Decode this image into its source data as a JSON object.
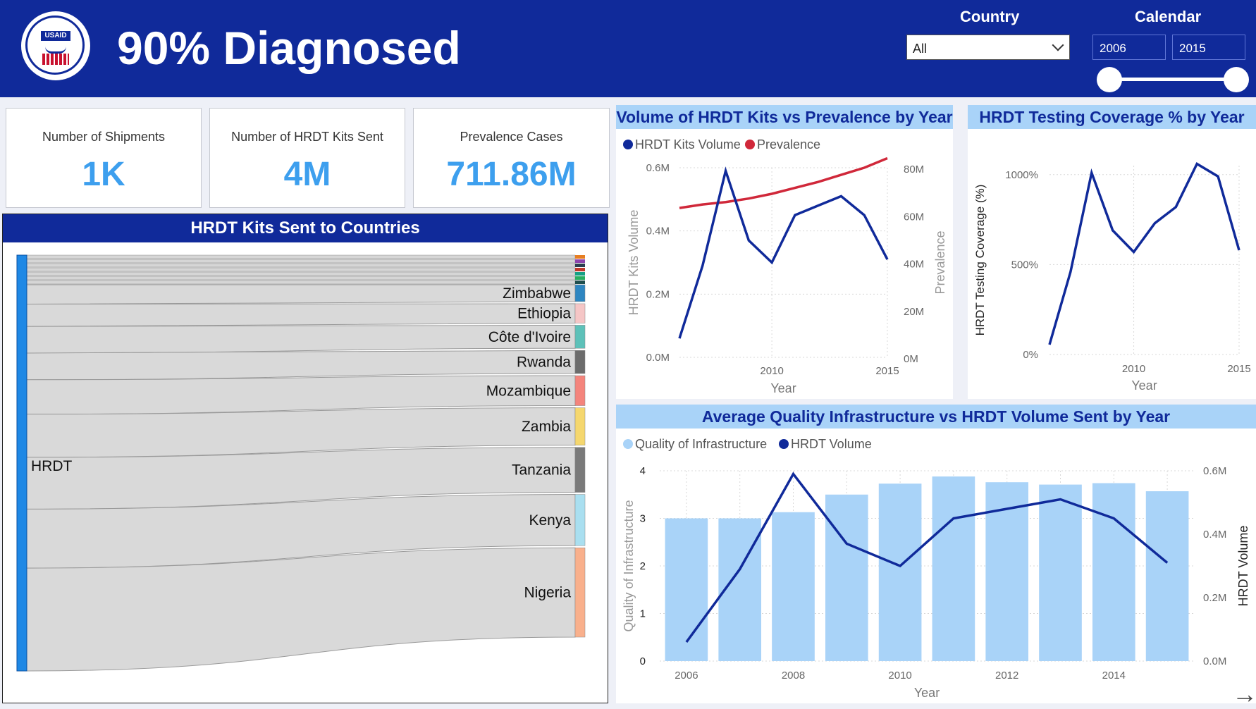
{
  "header": {
    "title": "90% Diagnosed",
    "country_label": "Country",
    "country_value": "All",
    "calendar_label": "Calendar",
    "start_year": "2006",
    "end_year": "2015",
    "logo_text": "USAID",
    "logo_ring_text": "UNITED STATES AGENCY INTERNATIONAL DEVELOPMENT"
  },
  "kpis": [
    {
      "label": "Number of Shipments",
      "value": "1K"
    },
    {
      "label": "Number of HRDT Kits Sent",
      "value": "4M"
    },
    {
      "label": "Prevalence Cases",
      "value": "711.86M"
    }
  ],
  "colors": {
    "navy": "#102a9a",
    "kpi_blue": "#3d9fee",
    "light_blue": "#a9d3f8",
    "prevalence_red": "#d0283a",
    "bar_blue": "#a9d3f8"
  },
  "sankey": {
    "title": "HRDT Kits Sent to Countries",
    "source": "HRDT",
    "countries": [
      {
        "name": "Zimbabwe",
        "color": "#2e86c1",
        "weight": 27
      },
      {
        "name": "Ethiopia",
        "color": "#f5c6c6",
        "weight": 31
      },
      {
        "name": "Côte d'Ivoire",
        "color": "#5dc1b9",
        "weight": 37
      },
      {
        "name": "Rwanda",
        "color": "#6c6c6c",
        "weight": 37
      },
      {
        "name": "Mozambique",
        "color": "#f4847c",
        "weight": 48
      },
      {
        "name": "Zambia",
        "color": "#f5d76e",
        "weight": 60
      },
      {
        "name": "Tanzania",
        "color": "#7a7a7a",
        "weight": 72
      },
      {
        "name": "Kenya",
        "color": "#a9dff0",
        "weight": 82
      },
      {
        "name": "Nigeria",
        "color": "#f9b08c",
        "weight": 143
      }
    ],
    "small_colors": [
      "#e67e22",
      "#8e44ad",
      "#2c3e50",
      "#c0392b",
      "#16a085",
      "#27ae60",
      "#1f4e4e"
    ]
  },
  "chart_data": [
    {
      "type": "line",
      "title": "Volume of HRDT Kits vs Prevalence by Year",
      "xlabel": "Year",
      "ylabel_left": "HRDT Kits Volume",
      "ylabel_right": "Prevalence",
      "x": [
        2006,
        2007,
        2008,
        2009,
        2010,
        2011,
        2012,
        2013,
        2014,
        2015
      ],
      "x_ticks": [
        "2010",
        "2015"
      ],
      "y_left_ticks": [
        "0.0M",
        "0.2M",
        "0.4M",
        "0.6M"
      ],
      "y_right_ticks": [
        "0M",
        "20M",
        "40M",
        "60M",
        "80M"
      ],
      "y_left_lim": [
        0,
        0.6
      ],
      "y_right_lim": [
        0,
        80
      ],
      "legend_position": "top-left",
      "series": [
        {
          "name": "HRDT Kits Volume",
          "axis": "left",
          "color": "#102a9a",
          "values": [
            0.06,
            0.29,
            0.59,
            0.37,
            0.3,
            0.45,
            0.48,
            0.51,
            0.45,
            0.31
          ]
        },
        {
          "name": "Prevalence",
          "axis": "right",
          "color": "#d0283a",
          "values": [
            63,
            64.5,
            65.5,
            67,
            69,
            71.5,
            74,
            77,
            80,
            84
          ]
        }
      ]
    },
    {
      "type": "line",
      "title": "HRDT Testing Coverage % by Year",
      "xlabel": "Year",
      "ylabel": "HRDT Testing Coverage (%)",
      "x": [
        2006,
        2007,
        2008,
        2009,
        2010,
        2011,
        2012,
        2013,
        2014,
        2015
      ],
      "x_ticks": [
        "2010",
        "2015"
      ],
      "y_ticks": [
        "0%",
        "500%",
        "1000%"
      ],
      "ylim": [
        0,
        1050
      ],
      "series": [
        {
          "name": "HRDT Testing Coverage",
          "color": "#102a9a",
          "values": [
            55,
            460,
            1010,
            690,
            570,
            730,
            820,
            1060,
            990,
            580
          ]
        }
      ]
    },
    {
      "type": "bar",
      "title": "Average Quality Infrastructure vs HRDT Volume Sent by Year",
      "xlabel": "Year",
      "ylabel_left": "Quality of Infrastructure",
      "ylabel_right": "HRDT Volume",
      "categories": [
        "2006",
        "2007",
        "2008",
        "2009",
        "2010",
        "2011",
        "2012",
        "2013",
        "2014",
        "2015"
      ],
      "x_ticks": [
        "2006",
        "2008",
        "2010",
        "2012",
        "2014"
      ],
      "y_left_ticks": [
        "0",
        "1",
        "2",
        "3",
        "4"
      ],
      "y_right_ticks": [
        "0.0M",
        "0.2M",
        "0.4M",
        "0.6M"
      ],
      "y_left_lim": [
        0,
        4
      ],
      "y_right_lim": [
        0,
        0.6
      ],
      "legend_position": "top-left",
      "series": [
        {
          "name": "Quality of Infrastructure",
          "kind": "bar",
          "axis": "left",
          "color": "#a9d3f8",
          "values": [
            3.0,
            3.0,
            3.13,
            3.5,
            3.73,
            3.88,
            3.76,
            3.71,
            3.74,
            3.57
          ]
        },
        {
          "name": "HRDT Volume",
          "kind": "line",
          "axis": "right",
          "color": "#102a9a",
          "values": [
            0.06,
            0.29,
            0.59,
            0.37,
            0.3,
            0.45,
            0.48,
            0.51,
            0.45,
            0.31
          ]
        }
      ]
    }
  ]
}
